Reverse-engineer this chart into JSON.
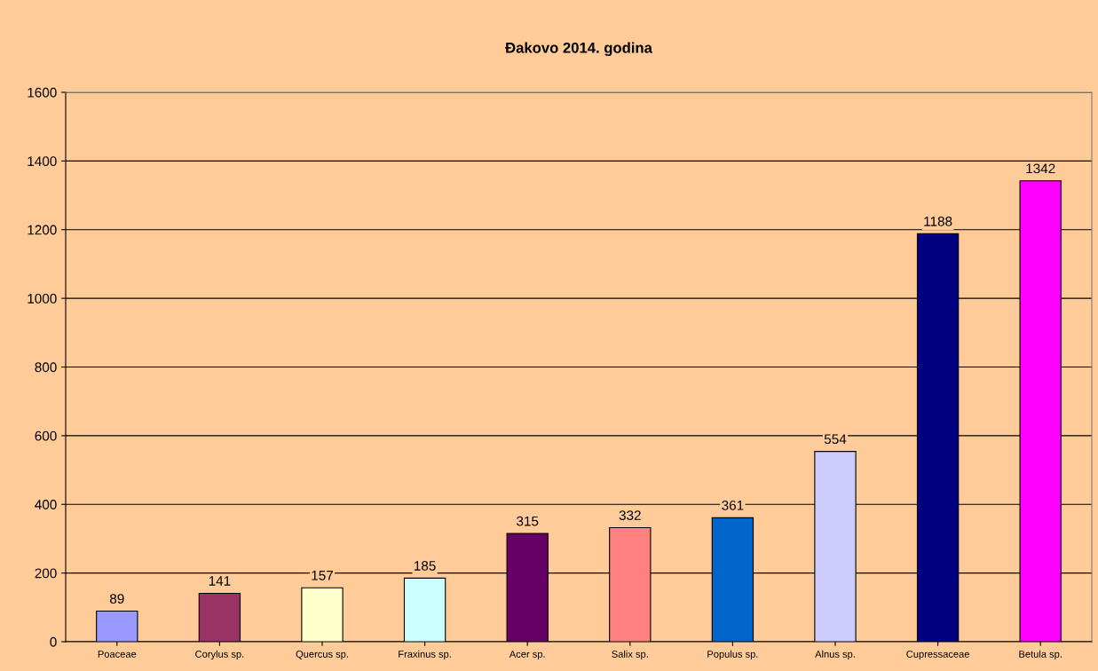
{
  "chart_data": {
    "type": "bar",
    "title": "Đakovo 2014. godina",
    "categories": [
      "Poaceae",
      "Corylus sp.",
      "Quercus sp.",
      "Fraxinus sp.",
      "Acer sp.",
      "Salix sp.",
      "Populus sp.",
      "Alnus sp.",
      "Cupressaceae",
      "Betula sp."
    ],
    "values": [
      89,
      141,
      157,
      185,
      315,
      332,
      361,
      554,
      1188,
      1342
    ],
    "colors": [
      "#9999ff",
      "#993366",
      "#ffffcc",
      "#ccffff",
      "#660066",
      "#ff8080",
      "#0066cc",
      "#ccccff",
      "#000080",
      "#ff00ff"
    ],
    "ylim": [
      0,
      1600
    ],
    "yticks": [
      0,
      200,
      400,
      600,
      800,
      1000,
      1200,
      1400,
      1600
    ],
    "grid": "y",
    "data_labels": true,
    "legend": false
  }
}
